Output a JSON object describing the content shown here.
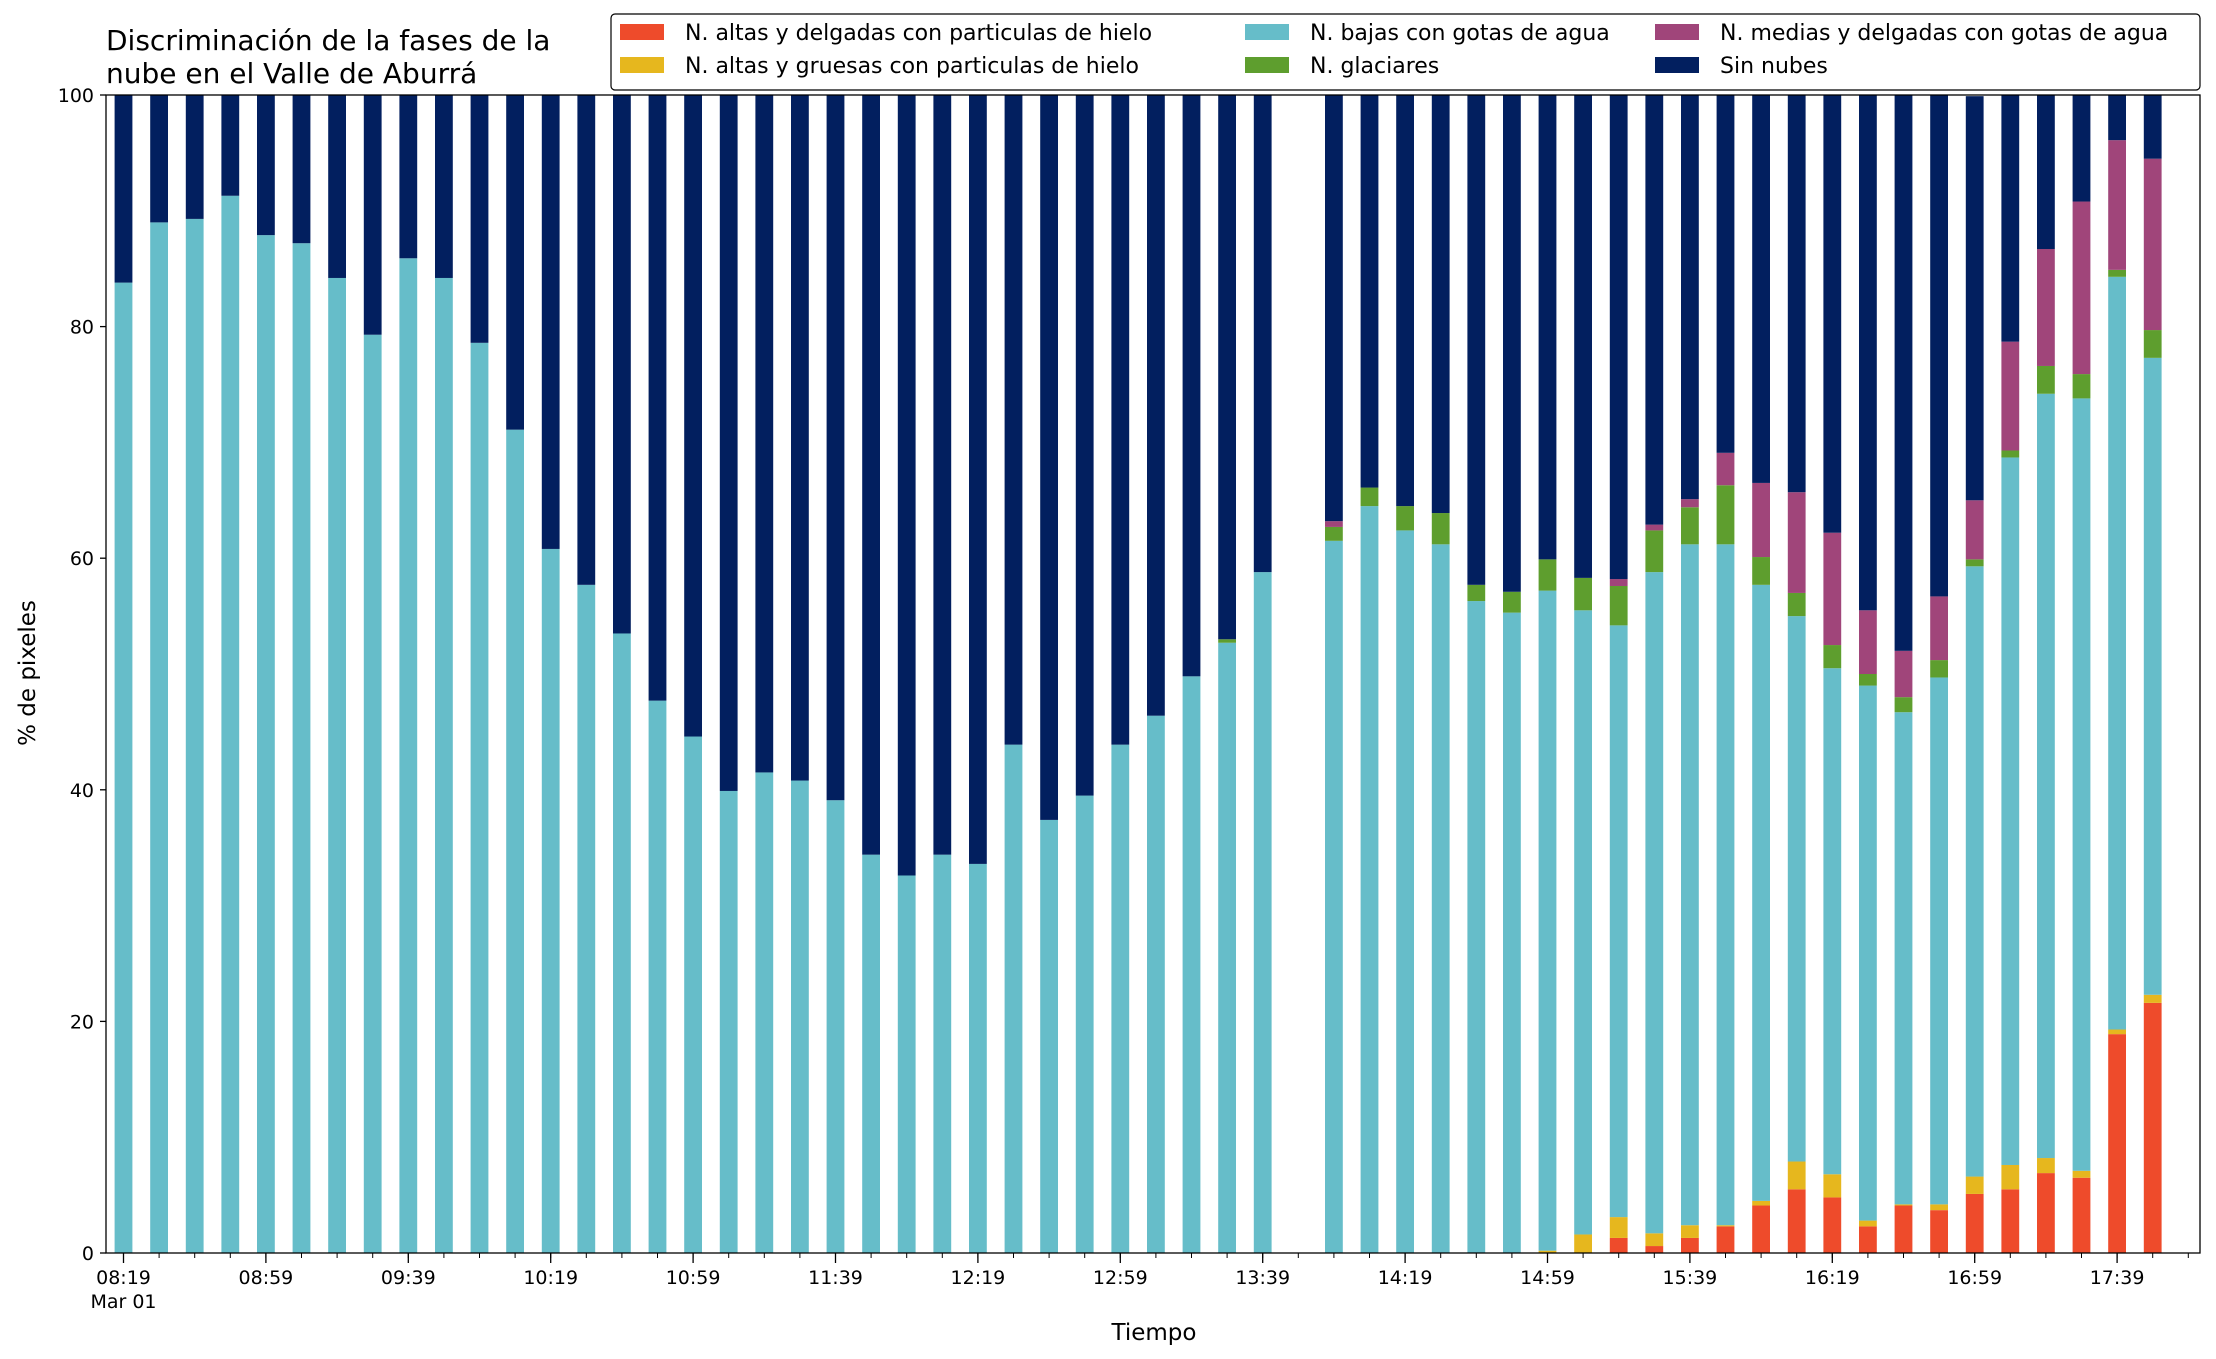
{
  "chart_data": {
    "type": "bar",
    "stacked": true,
    "title_lines": [
      "Discriminación de la fases de la",
      "nube en el Valle de Aburrá"
    ],
    "xlabel": "Tiempo",
    "ylabel": "% de pixeles",
    "ylim": [
      0,
      100
    ],
    "yticks": [
      0,
      20,
      40,
      60,
      80,
      100
    ],
    "grid": false,
    "legend_position": "top-right",
    "x_start_index": 0,
    "x_end_index": 58,
    "tick_labels": [
      {
        "label": "08:19",
        "index": 0,
        "sub": "Mar 01"
      },
      {
        "label": "08:59",
        "index": 4
      },
      {
        "label": "09:39",
        "index": 8
      },
      {
        "label": "10:19",
        "index": 12
      },
      {
        "label": "10:59",
        "index": 16
      },
      {
        "label": "11:39",
        "index": 20
      },
      {
        "label": "12:19",
        "index": 24
      },
      {
        "label": "12:59",
        "index": 28
      },
      {
        "label": "13:39",
        "index": 32
      },
      {
        "label": "14:19",
        "index": 36
      },
      {
        "label": "14:59",
        "index": 40
      },
      {
        "label": "15:39",
        "index": 44
      },
      {
        "label": "16:19",
        "index": 48
      },
      {
        "label": "16:59",
        "index": 52
      },
      {
        "label": "17:39",
        "index": 56
      }
    ],
    "series": [
      {
        "name": "N. altas y delgadas con particulas de hielo",
        "color": "#ee4b2b",
        "values": [
          0,
          0,
          0,
          0,
          0,
          0,
          0,
          0,
          0,
          0,
          0,
          0,
          0,
          0,
          0,
          0,
          0,
          0,
          0,
          0,
          0,
          0,
          0,
          0,
          0,
          0,
          0,
          0,
          0,
          0,
          0,
          0,
          0,
          0,
          0,
          0,
          0,
          0,
          0,
          0,
          0,
          0,
          1.3,
          0.6,
          1.3,
          2.3,
          4.1,
          5.5,
          4.8,
          2.3,
          4.1,
          3.7,
          5.1,
          5.5,
          6.9,
          6.5,
          18.9,
          21.6
        ]
      },
      {
        "name": "N. altas y gruesas con particulas de hielo",
        "color": "#e6b71e",
        "values": [
          0,
          0,
          0,
          0,
          0,
          0,
          0,
          0,
          0,
          0,
          0,
          0,
          0,
          0,
          0,
          0,
          0,
          0,
          0,
          0,
          0,
          0,
          0,
          0,
          0,
          0,
          0,
          0,
          0,
          0,
          0,
          0,
          0,
          0,
          0,
          0,
          0,
          0,
          0,
          0,
          0.2,
          1.6,
          1.8,
          1.1,
          1.1,
          0.1,
          0.4,
          2.4,
          2.0,
          0.5,
          0.1,
          0.5,
          1.5,
          2.1,
          1.3,
          0.6,
          0.4,
          0.7
        ]
      },
      {
        "name": "N. bajas con gotas de agua",
        "color": "#66bdc9",
        "values": [
          83.8,
          89.0,
          89.3,
          91.3,
          87.9,
          87.2,
          84.2,
          79.3,
          85.9,
          84.2,
          78.6,
          71.1,
          60.8,
          57.7,
          53.5,
          47.7,
          44.6,
          39.9,
          41.5,
          40.8,
          39.1,
          34.4,
          32.6,
          34.4,
          33.6,
          43.9,
          37.4,
          39.5,
          43.9,
          46.4,
          49.8,
          52.7,
          58.8,
          0,
          61.5,
          64.5,
          62.4,
          61.2,
          56.3,
          55.3,
          57.0,
          53.9,
          51.1,
          57.1,
          58.8,
          58.8,
          53.2,
          47.1,
          43.7,
          46.2,
          42.5,
          45.5,
          52.7,
          61.1,
          66.0,
          66.7,
          65.0,
          55.0
        ]
      },
      {
        "name": "N. glaciares",
        "color": "#5e9e2e",
        "values": [
          0,
          0,
          0,
          0,
          0,
          0,
          0,
          0,
          0,
          0,
          0,
          0,
          0,
          0,
          0,
          0,
          0,
          0,
          0,
          0,
          0,
          0,
          0,
          0,
          0,
          0,
          0,
          0,
          0,
          0,
          0,
          0.3,
          0,
          0,
          1.2,
          1.6,
          2.1,
          2.7,
          1.4,
          1.8,
          2.7,
          2.8,
          3.4,
          3.6,
          3.2,
          5.1,
          2.4,
          2.0,
          2.0,
          1.0,
          1.3,
          1.5,
          0.6,
          0.6,
          2.4,
          2.1,
          0.6,
          2.4
        ]
      },
      {
        "name": "N. medias y delgadas con gotas de agua",
        "color": "#a0457a",
        "values": [
          0,
          0,
          0,
          0,
          0,
          0,
          0,
          0,
          0,
          0,
          0,
          0,
          0,
          0,
          0,
          0,
          0,
          0,
          0,
          0,
          0,
          0,
          0,
          0,
          0,
          0,
          0,
          0,
          0,
          0,
          0,
          0,
          0,
          0,
          0.5,
          0,
          0,
          0,
          0,
          0,
          0,
          0,
          0.6,
          0.5,
          0.7,
          2.8,
          6.4,
          8.7,
          9.7,
          5.5,
          4.0,
          5.5,
          5.1,
          9.4,
          10.1,
          14.9,
          11.2,
          14.8
        ]
      },
      {
        "name": "Sin nubes",
        "color": "#021f5f",
        "values": [
          16.2,
          11.0,
          10.7,
          8.7,
          12.1,
          12.8,
          15.8,
          20.7,
          14.1,
          15.8,
          21.4,
          28.9,
          39.2,
          42.3,
          46.5,
          52.3,
          55.4,
          60.1,
          58.5,
          59.2,
          60.9,
          65.6,
          67.4,
          65.6,
          66.4,
          56.1,
          62.6,
          60.5,
          56.1,
          53.6,
          50.2,
          47.0,
          41.2,
          0,
          36.8,
          33.9,
          35.5,
          36.1,
          42.3,
          42.9,
          40.1,
          41.7,
          41.8,
          37.1,
          34.9,
          30.9,
          33.5,
          34.3,
          37.8,
          44.5,
          48.0,
          43.3,
          34.9,
          21.3,
          13.3,
          9.2,
          3.9,
          5.5
        ]
      }
    ]
  }
}
